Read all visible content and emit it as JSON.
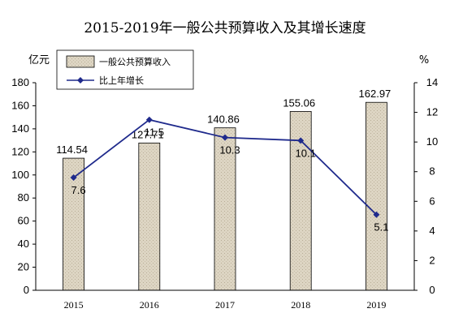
{
  "chart_data": {
    "type": "bar",
    "title": "2015-2019年一般公共预算收入及其增长速度",
    "categories": [
      "2015",
      "2016",
      "2017",
      "2018",
      "2019"
    ],
    "y_left_label": "亿元",
    "y_right_label": "%",
    "y_left_range": [
      0,
      180
    ],
    "y_left_ticks": [
      "0",
      "20",
      "40",
      "60",
      "80",
      "100",
      "120",
      "140",
      "160",
      "180"
    ],
    "y_right_range": [
      0,
      14
    ],
    "y_right_ticks": [
      "0",
      "2",
      "4",
      "6",
      "8",
      "10",
      "12",
      "14"
    ],
    "grid": false,
    "legend_position": "top-left",
    "series": [
      {
        "name": "一般公共预算收入",
        "type": "bar",
        "axis": "left",
        "values": [
          114.54,
          127.71,
          140.86,
          155.06,
          162.97
        ],
        "labels": [
          "114.54",
          "127.71",
          "140.86",
          "155.06",
          "162.97"
        ],
        "color": "#ddd5c3"
      },
      {
        "name": "比上年增长",
        "type": "line",
        "axis": "right",
        "values": [
          7.6,
          11.5,
          10.3,
          10.1,
          5.1
        ],
        "labels": [
          "7.6",
          "11.5",
          "10.3",
          "10.1",
          "5.1"
        ],
        "color": "#1f2a8c"
      }
    ]
  }
}
